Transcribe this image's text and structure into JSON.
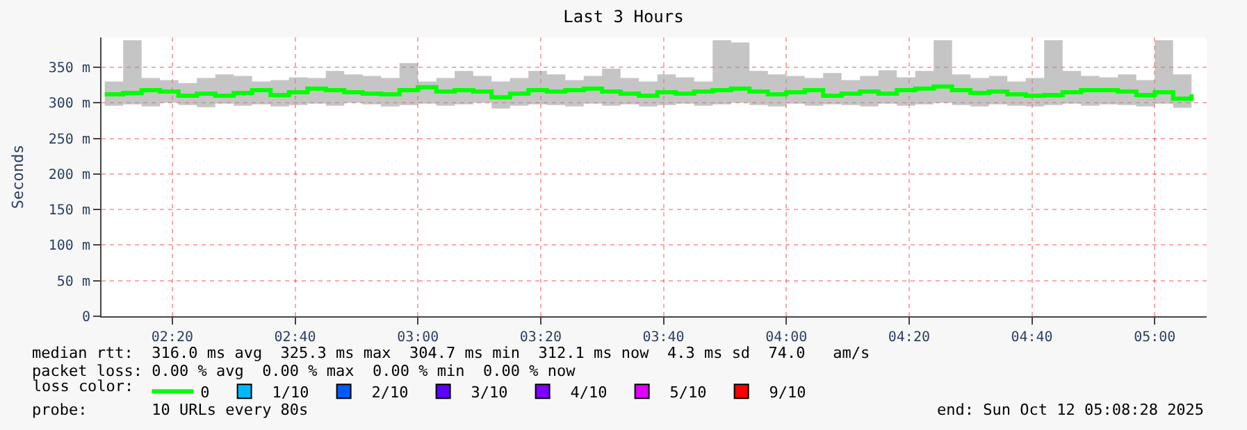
{
  "chart_data": {
    "type": "step",
    "title": "Last 3 Hours",
    "ylabel": "Seconds",
    "legend_title": "loss color:",
    "x": [
      "2025-10-12T02:09",
      "2025-10-12T02:12",
      "2025-10-12T02:15",
      "2025-10-12T02:18",
      "2025-10-12T02:21",
      "2025-10-12T02:24",
      "2025-10-12T02:27",
      "2025-10-12T02:30",
      "2025-10-12T02:33",
      "2025-10-12T02:36",
      "2025-10-12T02:39",
      "2025-10-12T02:42",
      "2025-10-12T02:45",
      "2025-10-12T02:48",
      "2025-10-12T02:51",
      "2025-10-12T02:54",
      "2025-10-12T02:57",
      "2025-10-12T03:00",
      "2025-10-12T03:03",
      "2025-10-12T03:06",
      "2025-10-12T03:09",
      "2025-10-12T03:12",
      "2025-10-12T03:15",
      "2025-10-12T03:18",
      "2025-10-12T03:21",
      "2025-10-12T03:24",
      "2025-10-12T03:27",
      "2025-10-12T03:30",
      "2025-10-12T03:33",
      "2025-10-12T03:36",
      "2025-10-12T03:39",
      "2025-10-12T03:42",
      "2025-10-12T03:45",
      "2025-10-12T03:48",
      "2025-10-12T03:51",
      "2025-10-12T03:54",
      "2025-10-12T03:57",
      "2025-10-12T04:00",
      "2025-10-12T04:03",
      "2025-10-12T04:06",
      "2025-10-12T04:09",
      "2025-10-12T04:12",
      "2025-10-12T04:15",
      "2025-10-12T04:18",
      "2025-10-12T04:21",
      "2025-10-12T04:24",
      "2025-10-12T04:27",
      "2025-10-12T04:30",
      "2025-10-12T04:33",
      "2025-10-12T04:36",
      "2025-10-12T04:39",
      "2025-10-12T04:42",
      "2025-10-12T04:45",
      "2025-10-12T04:48",
      "2025-10-12T04:51",
      "2025-10-12T04:54",
      "2025-10-12T04:57",
      "2025-10-12T05:00",
      "2025-10-12T05:03",
      "2025-10-12T05:06"
    ],
    "series": [
      {
        "name": "0",
        "color": "#00ff00",
        "values": [
          312,
          314,
          318,
          316,
          310,
          313,
          310,
          314,
          318,
          311,
          315,
          320,
          318,
          315,
          313,
          312,
          318,
          322,
          316,
          318,
          316,
          308,
          313,
          318,
          316,
          318,
          320,
          316,
          313,
          310,
          315,
          313,
          316,
          318,
          320,
          316,
          312,
          315,
          318,
          310,
          313,
          316,
          313,
          318,
          320,
          323,
          318,
          314,
          316,
          312,
          310,
          311,
          315,
          318,
          318,
          316,
          311,
          315,
          306,
          312
        ],
        "lower": [
          296,
          298,
          295,
          300,
          297,
          294,
          299,
          296,
          298,
          295,
          297,
          299,
          296,
          300,
          298,
          295,
          297,
          299,
          296,
          298,
          300,
          292,
          296,
          298,
          297,
          295,
          299,
          296,
          298,
          295,
          297,
          299,
          296,
          298,
          300,
          297,
          295,
          299,
          296,
          298,
          297,
          295,
          299,
          296,
          298,
          300,
          297,
          295,
          298,
          296,
          295,
          297,
          299,
          296,
          298,
          297,
          295,
          299,
          293,
          296
        ],
        "upper": [
          330,
          388,
          335,
          332,
          328,
          335,
          340,
          338,
          330,
          332,
          336,
          335,
          345,
          340,
          338,
          335,
          356,
          330,
          335,
          345,
          338,
          330,
          335,
          345,
          340,
          332,
          338,
          348,
          335,
          330,
          340,
          336,
          330,
          388,
          385,
          345,
          340,
          338,
          335,
          342,
          332,
          338,
          346,
          336,
          345,
          388,
          340,
          335,
          338,
          330,
          335,
          388,
          345,
          338,
          336,
          340,
          332,
          388,
          340,
          335
        ]
      },
      {
        "name": "1/10",
        "color": "#00b8ff",
        "values": [
          null,
          null,
          null,
          null,
          null,
          null,
          null,
          null,
          null,
          null,
          null,
          null,
          null,
          null,
          null,
          null,
          null,
          null,
          null,
          null,
          null,
          null,
          null,
          null,
          null,
          null,
          null,
          null,
          null,
          null,
          null,
          null,
          null,
          null,
          null,
          null,
          null,
          null,
          null,
          null,
          null,
          null,
          null,
          null,
          null,
          null,
          null,
          null,
          null,
          null,
          null,
          null,
          null,
          null,
          null,
          null,
          null,
          null,
          null,
          null
        ]
      },
      {
        "name": "2/10",
        "color": "#0059ff",
        "values": [
          null,
          null,
          null,
          null,
          null,
          null,
          null,
          null,
          null,
          null,
          null,
          null,
          null,
          null,
          null,
          null,
          null,
          null,
          null,
          null,
          null,
          null,
          null,
          null,
          null,
          null,
          null,
          null,
          null,
          null,
          null,
          null,
          null,
          null,
          null,
          null,
          null,
          null,
          null,
          null,
          null,
          null,
          null,
          null,
          null,
          null,
          null,
          null,
          null,
          null,
          null,
          null,
          null,
          null,
          null,
          null,
          null,
          null,
          null,
          null
        ]
      },
      {
        "name": "3/10",
        "color": "#5e00ff",
        "values": [
          null,
          null,
          null,
          null,
          null,
          null,
          null,
          null,
          null,
          null,
          null,
          null,
          null,
          null,
          null,
          null,
          null,
          null,
          null,
          null,
          null,
          null,
          null,
          null,
          null,
          null,
          null,
          null,
          null,
          null,
          null,
          null,
          null,
          null,
          null,
          null,
          null,
          null,
          null,
          null,
          null,
          null,
          null,
          null,
          null,
          null,
          null,
          null,
          null,
          null,
          null,
          null,
          null,
          null,
          null,
          null,
          null,
          null,
          null,
          null
        ]
      },
      {
        "name": "4/10",
        "color": "#7e00ff",
        "values": [
          null,
          null,
          null,
          null,
          null,
          null,
          null,
          null,
          null,
          null,
          null,
          null,
          null,
          null,
          null,
          null,
          null,
          null,
          null,
          null,
          null,
          null,
          null,
          null,
          null,
          null,
          null,
          null,
          null,
          null,
          null,
          null,
          null,
          null,
          null,
          null,
          null,
          null,
          null,
          null,
          null,
          null,
          null,
          null,
          null,
          null,
          null,
          null,
          null,
          null,
          null,
          null,
          null,
          null,
          null,
          null,
          null,
          null,
          null,
          null
        ]
      },
      {
        "name": "5/10",
        "color": "#dd00ff",
        "values": [
          null,
          null,
          null,
          null,
          null,
          null,
          null,
          null,
          null,
          null,
          null,
          null,
          null,
          null,
          null,
          null,
          null,
          null,
          null,
          null,
          null,
          null,
          null,
          null,
          null,
          null,
          null,
          null,
          null,
          null,
          null,
          null,
          null,
          null,
          null,
          null,
          null,
          null,
          null,
          null,
          null,
          null,
          null,
          null,
          null,
          null,
          null,
          null,
          null,
          null,
          null,
          null,
          null,
          null,
          null,
          null,
          null,
          null,
          null,
          null
        ]
      },
      {
        "name": "9/10",
        "color": "#ff0000",
        "values": [
          null,
          null,
          null,
          null,
          null,
          null,
          null,
          null,
          null,
          null,
          null,
          null,
          null,
          null,
          null,
          null,
          null,
          null,
          null,
          null,
          null,
          null,
          null,
          null,
          null,
          null,
          null,
          null,
          null,
          null,
          null,
          null,
          null,
          null,
          null,
          null,
          null,
          null,
          null,
          null,
          null,
          null,
          null,
          null,
          null,
          null,
          null,
          null,
          null,
          null,
          null,
          null,
          null,
          null,
          null,
          null,
          null,
          null,
          null,
          null
        ]
      }
    ],
    "xlim": [
      "2025-10-12T02:08:28",
      "2025-10-12T05:08:28"
    ],
    "xticks": [
      {
        "value": "2025-10-12T02:20",
        "label": "02:20"
      },
      {
        "value": "2025-10-12T02:40",
        "label": "02:40"
      },
      {
        "value": "2025-10-12T03:00",
        "label": "03:00"
      },
      {
        "value": "2025-10-12T03:20",
        "label": "03:20"
      },
      {
        "value": "2025-10-12T03:40",
        "label": "03:40"
      },
      {
        "value": "2025-10-12T04:00",
        "label": "04:00"
      },
      {
        "value": "2025-10-12T04:20",
        "label": "04:20"
      },
      {
        "value": "2025-10-12T04:40",
        "label": "04:40"
      },
      {
        "value": "2025-10-12T05:00",
        "label": "05:00"
      }
    ],
    "ylim": [
      0,
      392
    ],
    "yticks": [
      0,
      {
        "value": 50,
        "label": "50 m"
      },
      {
        "value": 100,
        "label": "100 m"
      },
      {
        "value": 150,
        "label": "150 m"
      },
      {
        "value": 200,
        "label": "200 m"
      },
      {
        "value": 250,
        "label": "250 m"
      },
      {
        "value": 300,
        "label": "300 m"
      },
      {
        "value": 350,
        "label": "350 m"
      }
    ],
    "grid": true,
    "legend": "bottom",
    "marker": "none",
    "line_style": "solid",
    "annotations": [
      "median rtt:  316.0 ms avg  325.3 ms max  304.7 ms min  312.1 ms now  4.3 ms sd  74.0   am/s",
      "packet loss: 0.00 % avg  0.00 % max  0.00 % min  0.00 % now",
      "probe:       10 URLs every 80s",
      "end: Sun Oct 12 05:08:28 2025"
    ]
  }
}
